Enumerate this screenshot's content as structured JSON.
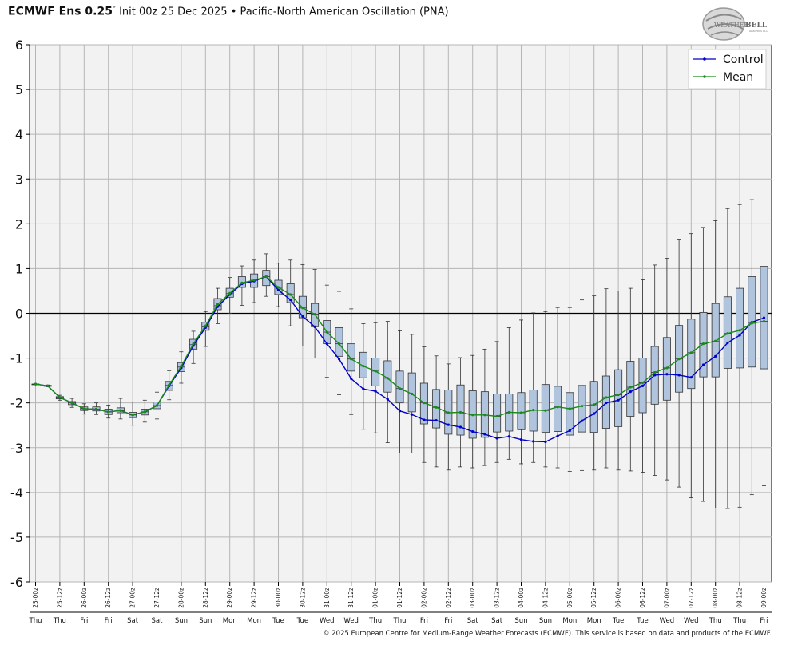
{
  "header": {
    "model": "ECMWF Ens 0.25",
    "deg": "°",
    "init": "Init 00z 25 Dec 2025",
    "bullet": "•",
    "index_name": "Pacific-North American Oscillation (PNA)"
  },
  "logo": {
    "text_a": "WEATHER",
    "text_b": "BELL",
    "sub": "Analytics LLC"
  },
  "footer": {
    "text": "© 2025 European Centre for Medium-Range Weather Forecasts (ECMWF). This service is based on data and products of the ECMWF."
  },
  "colors": {
    "control": "#0000cc",
    "mean": "#1a8a1a",
    "box_fill": "#b0c4de",
    "plot_bg": "#f2f2f2",
    "grid": "#b5b5b5"
  },
  "chart_data": {
    "type": "box",
    "title": "",
    "xlabel": "",
    "ylabel": "",
    "ylim": [
      -6,
      6
    ],
    "yticks": [
      "-6",
      "-5",
      "-4",
      "-3",
      "-2",
      "-1",
      "0",
      "1",
      "2",
      "3",
      "4",
      "5",
      "6"
    ],
    "grid": true,
    "legend_position": "top-right",
    "x": [
      "25-00z",
      "25-06z",
      "25-12z",
      "25-18z",
      "26-00z",
      "26-06z",
      "26-12z",
      "26-18z",
      "27-00z",
      "27-06z",
      "27-12z",
      "27-18z",
      "28-00z",
      "28-06z",
      "28-12z",
      "28-18z",
      "29-00z",
      "29-06z",
      "29-12z",
      "29-18z",
      "30-00z",
      "30-06z",
      "30-12z",
      "30-18z",
      "31-00z",
      "31-06z",
      "31-12z",
      "31-18z",
      "01-00z",
      "01-06z",
      "01-12z",
      "01-18z",
      "02-00z",
      "02-06z",
      "02-12z",
      "02-18z",
      "03-00z",
      "03-06z",
      "03-12z",
      "03-18z",
      "04-00z",
      "04-06z",
      "04-12z",
      "04-18z",
      "05-00z",
      "05-06z",
      "05-12z",
      "05-18z",
      "06-00z",
      "06-06z",
      "06-12z",
      "06-18z",
      "07-00z",
      "07-06z",
      "07-12z",
      "07-18z",
      "08-00z",
      "08-06z",
      "08-12z",
      "08-18z",
      "09-00z"
    ],
    "x_tick_labels": [
      "25-00z",
      "25-12z",
      "26-00z",
      "26-12z",
      "27-00z",
      "27-12z",
      "28-00z",
      "28-12z",
      "29-00z",
      "29-12z",
      "30-00z",
      "30-12z",
      "31-00z",
      "31-12z",
      "01-00z",
      "01-12z",
      "02-00z",
      "02-12z",
      "03-00z",
      "03-12z",
      "04-00z",
      "04-12z",
      "05-00z",
      "05-12z",
      "06-00z",
      "06-12z",
      "07-00z",
      "07-12z",
      "08-00z",
      "08-12z",
      "09-00z"
    ],
    "day_labels": [
      "Thu",
      "Thu",
      "Fri",
      "Fri",
      "Sat",
      "Sat",
      "Sun",
      "Sun",
      "Mon",
      "Mon",
      "Tue",
      "Tue",
      "Wed",
      "Wed",
      "Thu",
      "Thu",
      "Fri",
      "Fri",
      "Sat",
      "Sat",
      "Sun",
      "Sun",
      "Mon",
      "Mon",
      "Tue",
      "Tue",
      "Wed",
      "Wed",
      "Thu",
      "Thu",
      "Fri"
    ],
    "series": [
      {
        "name": "Control",
        "values": [
          -1.58,
          -1.62,
          -1.88,
          -2.0,
          -2.13,
          -2.14,
          -2.2,
          -2.17,
          -2.27,
          -2.2,
          -2.06,
          -1.62,
          -1.22,
          -0.72,
          -0.32,
          0.15,
          0.42,
          0.66,
          0.72,
          0.82,
          0.52,
          0.3,
          -0.07,
          -0.3,
          -0.68,
          -1.02,
          -1.46,
          -1.69,
          -1.74,
          -1.92,
          -2.18,
          -2.26,
          -2.38,
          -2.39,
          -2.49,
          -2.54,
          -2.64,
          -2.7,
          -2.79,
          -2.75,
          -2.82,
          -2.86,
          -2.87,
          -2.74,
          -2.62,
          -2.4,
          -2.24,
          -2.0,
          -1.94,
          -1.75,
          -1.62,
          -1.38,
          -1.36,
          -1.38,
          -1.43,
          -1.15,
          -0.96,
          -0.66,
          -0.49,
          -0.2,
          -0.1
        ]
      },
      {
        "name": "Mean",
        "values": [
          -1.58,
          -1.62,
          -1.88,
          -2.0,
          -2.13,
          -2.14,
          -2.2,
          -2.17,
          -2.27,
          -2.2,
          -2.06,
          -1.6,
          -1.18,
          -0.68,
          -0.28,
          0.2,
          0.45,
          0.68,
          0.74,
          0.82,
          0.58,
          0.42,
          0.12,
          -0.02,
          -0.42,
          -0.68,
          -1.02,
          -1.18,
          -1.29,
          -1.45,
          -1.68,
          -1.8,
          -2.0,
          -2.1,
          -2.22,
          -2.21,
          -2.27,
          -2.27,
          -2.3,
          -2.21,
          -2.22,
          -2.16,
          -2.17,
          -2.09,
          -2.13,
          -2.07,
          -2.04,
          -1.88,
          -1.82,
          -1.65,
          -1.55,
          -1.32,
          -1.22,
          -1.02,
          -0.88,
          -0.68,
          -0.62,
          -0.45,
          -0.38,
          -0.22,
          -0.18
        ]
      }
    ],
    "boxes": [
      {
        "min": -1.58,
        "q1": -1.58,
        "median": -1.58,
        "q3": -1.58,
        "max": -1.58
      },
      {
        "min": -1.64,
        "q1": -1.63,
        "median": -1.62,
        "q3": -1.61,
        "max": -1.6
      },
      {
        "min": -1.94,
        "q1": -1.91,
        "median": -1.88,
        "q3": -1.86,
        "max": -1.83
      },
      {
        "min": -2.1,
        "q1": -2.04,
        "median": -2.0,
        "q3": -1.97,
        "max": -1.9
      },
      {
        "min": -2.25,
        "q1": -2.17,
        "median": -2.13,
        "q3": -2.09,
        "max": -2.02
      },
      {
        "min": -2.26,
        "q1": -2.18,
        "median": -2.14,
        "q3": -2.09,
        "max": -2.0
      },
      {
        "min": -2.34,
        "q1": -2.26,
        "median": -2.2,
        "q3": -2.14,
        "max": -2.05
      },
      {
        "min": -2.36,
        "q1": -2.22,
        "median": -2.17,
        "q3": -2.11,
        "max": -1.9
      },
      {
        "min": -2.5,
        "q1": -2.33,
        "median": -2.27,
        "q3": -2.21,
        "max": -1.98
      },
      {
        "min": -2.43,
        "q1": -2.27,
        "median": -2.2,
        "q3": -2.14,
        "max": -1.94
      },
      {
        "min": -2.36,
        "q1": -2.13,
        "median": -2.06,
        "q3": -1.98,
        "max": -1.76
      },
      {
        "min": -1.93,
        "q1": -1.72,
        "median": -1.61,
        "q3": -1.52,
        "max": -1.28
      },
      {
        "min": -1.56,
        "q1": -1.3,
        "median": -1.2,
        "q3": -1.1,
        "max": -0.86
      },
      {
        "min": -1.12,
        "q1": -0.8,
        "median": -0.7,
        "q3": -0.58,
        "max": -0.4
      },
      {
        "min": -0.74,
        "q1": -0.38,
        "median": -0.3,
        "q3": -0.2,
        "max": 0.04
      },
      {
        "min": -0.23,
        "q1": 0.08,
        "median": 0.17,
        "q3": 0.33,
        "max": 0.56
      },
      {
        "min": 0.0,
        "q1": 0.36,
        "median": 0.44,
        "q3": 0.56,
        "max": 0.8
      },
      {
        "min": 0.18,
        "q1": 0.58,
        "median": 0.68,
        "q3": 0.82,
        "max": 1.06
      },
      {
        "min": 0.24,
        "q1": 0.58,
        "median": 0.74,
        "q3": 0.88,
        "max": 1.19
      },
      {
        "min": 0.38,
        "q1": 0.62,
        "median": 0.82,
        "q3": 0.96,
        "max": 1.33
      },
      {
        "min": 0.15,
        "q1": 0.42,
        "median": 0.58,
        "q3": 0.74,
        "max": 1.12
      },
      {
        "min": -0.28,
        "q1": 0.24,
        "median": 0.42,
        "q3": 0.66,
        "max": 1.19
      },
      {
        "min": -0.73,
        "q1": -0.1,
        "median": 0.12,
        "q3": 0.38,
        "max": 1.09
      },
      {
        "min": -1.0,
        "q1": -0.3,
        "median": -0.02,
        "q3": 0.22,
        "max": 0.98
      },
      {
        "min": -1.43,
        "q1": -0.68,
        "median": -0.42,
        "q3": -0.16,
        "max": 0.63
      },
      {
        "min": -1.82,
        "q1": -0.96,
        "median": -0.68,
        "q3": -0.32,
        "max": 0.49
      },
      {
        "min": -2.26,
        "q1": -1.29,
        "median": -1.02,
        "q3": -0.68,
        "max": 0.1
      },
      {
        "min": -2.59,
        "q1": -1.44,
        "median": -1.18,
        "q3": -0.87,
        "max": -0.23
      },
      {
        "min": -2.67,
        "q1": -1.62,
        "median": -1.29,
        "q3": -1.0,
        "max": -0.21
      },
      {
        "min": -2.89,
        "q1": -1.76,
        "median": -1.45,
        "q3": -1.06,
        "max": -0.18
      },
      {
        "min": -3.12,
        "q1": -2.0,
        "median": -1.68,
        "q3": -1.29,
        "max": -0.39
      },
      {
        "min": -3.12,
        "q1": -2.2,
        "median": -1.8,
        "q3": -1.33,
        "max": -0.47
      },
      {
        "min": -3.33,
        "q1": -2.47,
        "median": -2.0,
        "q3": -1.56,
        "max": -0.75
      },
      {
        "min": -3.43,
        "q1": -2.56,
        "median": -2.1,
        "q3": -1.7,
        "max": -0.95
      },
      {
        "min": -3.5,
        "q1": -2.7,
        "median": -2.22,
        "q3": -1.71,
        "max": -1.13
      },
      {
        "min": -3.43,
        "q1": -2.72,
        "median": -2.21,
        "q3": -1.6,
        "max": -0.99
      },
      {
        "min": -3.45,
        "q1": -2.79,
        "median": -2.27,
        "q3": -1.73,
        "max": -0.94
      },
      {
        "min": -3.4,
        "q1": -2.77,
        "median": -2.27,
        "q3": -1.75,
        "max": -0.8
      },
      {
        "min": -3.33,
        "q1": -2.65,
        "median": -2.3,
        "q3": -1.8,
        "max": -0.63
      },
      {
        "min": -3.26,
        "q1": -2.63,
        "median": -2.21,
        "q3": -1.8,
        "max": -0.32
      },
      {
        "min": -3.36,
        "q1": -2.6,
        "median": -2.22,
        "q3": -1.77,
        "max": -0.15
      },
      {
        "min": -3.33,
        "q1": -2.63,
        "median": -2.16,
        "q3": -1.71,
        "max": 0.01
      },
      {
        "min": -3.43,
        "q1": -2.66,
        "median": -2.17,
        "q3": -1.59,
        "max": 0.04
      },
      {
        "min": -3.45,
        "q1": -2.64,
        "median": -2.09,
        "q3": -1.63,
        "max": 0.13
      },
      {
        "min": -3.53,
        "q1": -2.72,
        "median": -2.13,
        "q3": -1.77,
        "max": 0.13
      },
      {
        "min": -3.51,
        "q1": -2.65,
        "median": -2.07,
        "q3": -1.61,
        "max": 0.3
      },
      {
        "min": -3.5,
        "q1": -2.66,
        "median": -2.04,
        "q3": -1.52,
        "max": 0.39
      },
      {
        "min": -3.45,
        "q1": -2.57,
        "median": -1.88,
        "q3": -1.4,
        "max": 0.55
      },
      {
        "min": -3.5,
        "q1": -2.53,
        "median": -1.82,
        "q3": -1.26,
        "max": 0.5
      },
      {
        "min": -3.52,
        "q1": -2.3,
        "median": -1.65,
        "q3": -1.07,
        "max": 0.56
      },
      {
        "min": -3.55,
        "q1": -2.22,
        "median": -1.55,
        "q3": -1.0,
        "max": 0.75
      },
      {
        "min": -3.62,
        "q1": -2.03,
        "median": -1.32,
        "q3": -0.74,
        "max": 1.08
      },
      {
        "min": -3.72,
        "q1": -1.94,
        "median": -1.22,
        "q3": -0.54,
        "max": 1.23
      },
      {
        "min": -3.88,
        "q1": -1.76,
        "median": -1.02,
        "q3": -0.27,
        "max": 1.64
      },
      {
        "min": -4.12,
        "q1": -1.68,
        "median": -0.88,
        "q3": -0.13,
        "max": 1.78
      },
      {
        "min": -4.2,
        "q1": -1.42,
        "median": -0.68,
        "q3": 0.02,
        "max": 1.92
      },
      {
        "min": -4.35,
        "q1": -1.42,
        "median": -0.62,
        "q3": 0.22,
        "max": 2.07
      },
      {
        "min": -4.36,
        "q1": -1.23,
        "median": -0.45,
        "q3": 0.37,
        "max": 2.34
      },
      {
        "min": -4.33,
        "q1": -1.22,
        "median": -0.38,
        "q3": 0.56,
        "max": 2.43
      },
      {
        "min": -4.05,
        "q1": -1.2,
        "median": -0.22,
        "q3": 0.82,
        "max": 2.54
      },
      {
        "min": -3.85,
        "q1": -1.24,
        "median": -0.18,
        "q3": 1.05,
        "max": 2.53
      }
    ]
  }
}
